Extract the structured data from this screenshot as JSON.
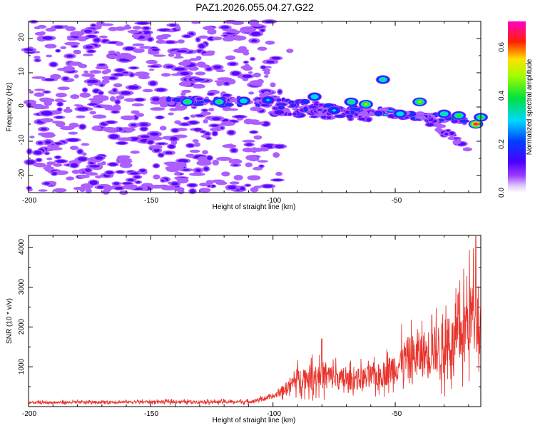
{
  "title": "PAZ1.2026.055.04.27.G22",
  "top_plot": {
    "xlabel": "Height of straight line (km)",
    "ylabel": "Frequency (Hz)",
    "xticks": [
      "-200",
      "-150",
      "-100",
      "-50"
    ],
    "yticks": [
      "20",
      "10",
      "0",
      "-10",
      "-20"
    ],
    "colorbar_label": "Normalized spectral amplitude",
    "colorbar_ticks": [
      "0.0",
      "0.2",
      "0.4",
      "0.6"
    ]
  },
  "bottom_plot": {
    "xlabel": "Height of straight line (km)",
    "ylabel": "SNR (10 * v/v)",
    "xticks": [
      "-200",
      "-150",
      "-100",
      "-50"
    ],
    "yticks": [
      "1000",
      "2000",
      "3000",
      "4000"
    ]
  },
  "chart_data": [
    {
      "type": "heatmap",
      "title": "PAZ1.2026.055.04.27.G22",
      "xlabel": "Height of straight line (km)",
      "ylabel": "Frequency (Hz)",
      "xlim": [
        -200,
        -15
      ],
      "ylim": [
        -25,
        25
      ],
      "zlim": [
        0,
        0.7
      ],
      "colormap": "rainbow (purple-blue-cyan-green-yellow-red-magenta)",
      "colorbar_label": "Normalized spectral amplitude",
      "noise_region": {
        "x_range": [
          -200,
          -100
        ],
        "y_range": [
          -25,
          25
        ],
        "amplitude": 0.08
      },
      "ridges": [
        {
          "x_range": [
            -143,
            -101
          ],
          "freq": [
            1.5,
            1.5
          ],
          "amplitude": 0.35
        },
        {
          "x_range": [
            -100,
            -20
          ],
          "freq": [
            1.5,
            -4
          ],
          "amplitude": 0.4
        },
        {
          "x_range": [
            -100,
            -60
          ],
          "freq": [
            -1,
            -3
          ],
          "amplitude": 0.3
        },
        {
          "x_range": [
            -40,
            -20
          ],
          "freq": [
            -2,
            -12
          ],
          "amplitude": 0.2
        }
      ],
      "peaks": [
        {
          "x": -135,
          "y": 1.5,
          "value": 0.45
        },
        {
          "x": -122,
          "y": 1.5,
          "value": 0.42
        },
        {
          "x": -112,
          "y": 1.8,
          "value": 0.38
        },
        {
          "x": -102,
          "y": 2,
          "value": 0.3
        },
        {
          "x": -83,
          "y": 3,
          "value": 0.38
        },
        {
          "x": -75,
          "y": -1,
          "value": 0.3
        },
        {
          "x": -68,
          "y": 1.5,
          "value": 0.42
        },
        {
          "x": -62,
          "y": 0.8,
          "value": 0.5
        },
        {
          "x": -55,
          "y": 8,
          "value": 0.4
        },
        {
          "x": -48,
          "y": -2,
          "value": 0.38
        },
        {
          "x": -40,
          "y": 1.5,
          "value": 0.5
        },
        {
          "x": -30,
          "y": -2,
          "value": 0.4
        },
        {
          "x": -24,
          "y": -2.5,
          "value": 0.45
        },
        {
          "x": -17,
          "y": -5,
          "value": 0.68
        },
        {
          "x": -15,
          "y": -3,
          "value": 0.45
        }
      ]
    },
    {
      "type": "line",
      "title": "",
      "xlabel": "Height of straight line (km)",
      "ylabel": "SNR (10 * v/v)",
      "xlim": [
        -200,
        -15
      ],
      "ylim": [
        0,
        4300
      ],
      "color": "#e8342c",
      "envelope": [
        {
          "x": -200,
          "level": 100,
          "spread": 60
        },
        {
          "x": -150,
          "level": 120,
          "spread": 70
        },
        {
          "x": -110,
          "level": 120,
          "spread": 80
        },
        {
          "x": -100,
          "level": 250,
          "spread": 100
        },
        {
          "x": -95,
          "level": 450,
          "spread": 300
        },
        {
          "x": -90,
          "level": 700,
          "spread": 500
        },
        {
          "x": -80,
          "level": 800,
          "spread": 700
        },
        {
          "x": -70,
          "level": 650,
          "spread": 500
        },
        {
          "x": -55,
          "level": 800,
          "spread": 600
        },
        {
          "x": -45,
          "level": 1200,
          "spread": 1100
        },
        {
          "x": -35,
          "level": 1400,
          "spread": 1200
        },
        {
          "x": -25,
          "level": 1600,
          "spread": 1400
        },
        {
          "x": -20,
          "level": 2200,
          "spread": 1800
        },
        {
          "x": -17,
          "level": 2500,
          "spread": 1700
        },
        {
          "x": -15,
          "level": 1800,
          "spread": 1000
        }
      ],
      "peaks": [
        {
          "x": -80,
          "y": 1700
        },
        {
          "x": -47,
          "y": 1250
        },
        {
          "x": -35,
          "y": 2300
        },
        {
          "x": -28,
          "y": 2200
        },
        {
          "x": -17,
          "y": 4300
        },
        {
          "x": -15,
          "y": 2500
        }
      ]
    }
  ]
}
